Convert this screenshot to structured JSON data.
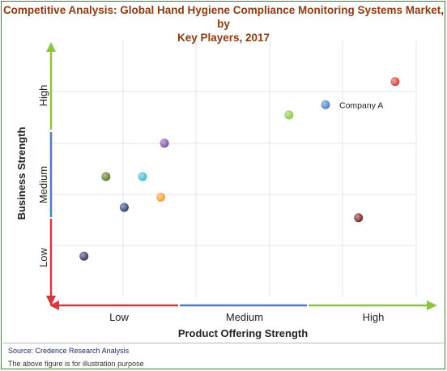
{
  "chart_data": {
    "type": "scatter",
    "title_line1": "Competitive Analysis: Global Hand Hygiene Compliance Monitoring Systems Market, by",
    "title_line2": "Key Players, 2017",
    "xlabel": "Product Offering Strength",
    "ylabel": "Business Strength",
    "x_bands": [
      "Low",
      "Medium",
      "High"
    ],
    "y_bands": [
      "Low",
      "Medium",
      "High"
    ],
    "xlim": [
      0,
      10
    ],
    "ylim": [
      0,
      10
    ],
    "grid": true,
    "points": [
      {
        "x": 9.4,
        "y": 8.4,
        "color": "#d53a3a",
        "label": ""
      },
      {
        "x": 7.5,
        "y": 7.5,
        "color": "#4a7fc1",
        "label": "Company A"
      },
      {
        "x": 6.5,
        "y": 7.1,
        "color": "#8cc63f",
        "label": ""
      },
      {
        "x": 3.1,
        "y": 6.0,
        "color": "#7b4fa5",
        "label": ""
      },
      {
        "x": 1.5,
        "y": 4.7,
        "color": "#5b7a1f",
        "label": ""
      },
      {
        "x": 2.5,
        "y": 4.7,
        "color": "#3fb8c8",
        "label": ""
      },
      {
        "x": 3.0,
        "y": 3.9,
        "color": "#f29a2e",
        "label": ""
      },
      {
        "x": 2.0,
        "y": 3.5,
        "color": "#2c3f6e",
        "label": ""
      },
      {
        "x": 8.4,
        "y": 3.1,
        "color": "#7a2020",
        "label": ""
      },
      {
        "x": 0.9,
        "y": 1.6,
        "color": "#3a2d5c",
        "label": ""
      }
    ]
  },
  "footer": {
    "source": "Source: Credence Research Analysis",
    "note": "The above figure is for illustration purpose"
  }
}
